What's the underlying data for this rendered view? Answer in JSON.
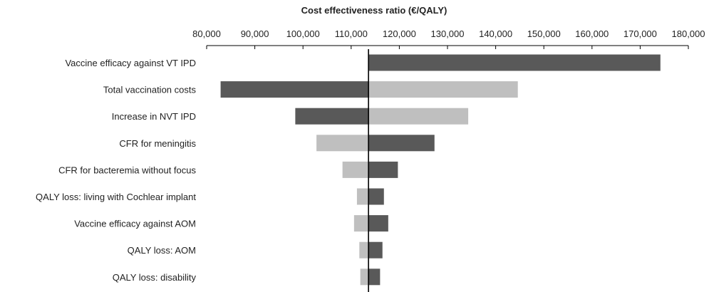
{
  "chart_data": {
    "type": "bar",
    "orientation": "horizontal",
    "subtype": "tornado",
    "title": "Cost effectiveness ratio (€/QALY)",
    "xlim": [
      80000,
      180000
    ],
    "ticks": [
      80000,
      90000,
      100000,
      110000,
      120000,
      130000,
      140000,
      150000,
      160000,
      170000,
      180000
    ],
    "tick_labels": [
      "80,000",
      "90,000",
      "100,000",
      "110,000",
      "120,000",
      "130,000",
      "140,000",
      "150,000",
      "160,000",
      "170,000",
      "180,000"
    ],
    "tick_position": "top",
    "grid": false,
    "base_value": 113600,
    "colors": {
      "dark": "#595959",
      "light": "#bfbfbf",
      "axis": "#000000"
    },
    "categories": [
      "Vaccine efficacy against VT IPD",
      "Total vaccination costs",
      "Increase in NVT IPD",
      "CFR for meningitis",
      "CFR for bacteremia without focus",
      "QALY loss: living with Cochlear  implant",
      "Vaccine efficacy against AOM",
      "QALY loss: AOM",
      "QALY loss: disability"
    ],
    "series": [
      {
        "shade": "light",
        "values": [
          113600,
          144600,
          134300,
          102800,
          108200,
          111200,
          110600,
          111700,
          111900
        ]
      },
      {
        "shade": "dark",
        "values": [
          174200,
          82900,
          98400,
          127300,
          119700,
          116800,
          117700,
          116500,
          116000
        ]
      }
    ]
  }
}
